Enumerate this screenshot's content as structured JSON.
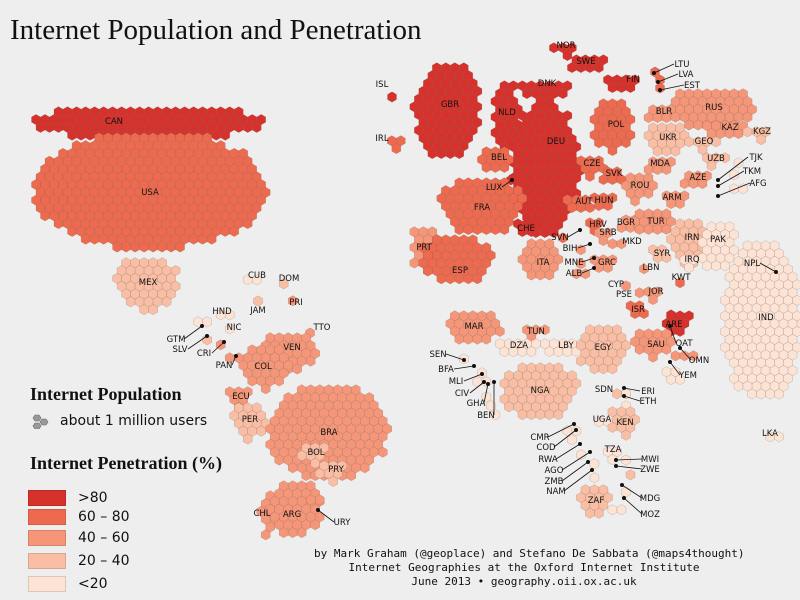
{
  "title": "Internet Population and Penetration",
  "legend": {
    "population_heading": "Internet Population",
    "population_unit": "about 1 million users",
    "penetration_heading": "Internet Penetration (%)",
    "bins": [
      {
        "label": ">80",
        "color": "#d7312b"
      },
      {
        "label": "60 – 80",
        "color": "#ee6a4f"
      },
      {
        "label": "40 – 60",
        "color": "#f59678"
      },
      {
        "label": "20 – 40",
        "color": "#f9bea3"
      },
      {
        "label": "<20",
        "color": "#fde3d4"
      }
    ]
  },
  "credit": {
    "line1": "by Mark Graham (@geoplace) and Stefano De Sabbata (@maps4thought)",
    "line2": "Internet Geographies at the Oxford Internet Institute",
    "line3": "June 2013 • geography.oii.ox.ac.uk"
  },
  "countries": [
    {
      "code": "CAN",
      "bin": 0
    },
    {
      "code": "USA",
      "bin": 1
    },
    {
      "code": "MEX",
      "bin": 3
    },
    {
      "code": "CUB",
      "bin": 4
    },
    {
      "code": "DOM",
      "bin": 3
    },
    {
      "code": "PRI",
      "bin": 2
    },
    {
      "code": "JAM",
      "bin": 3
    },
    {
      "code": "HND",
      "bin": 4
    },
    {
      "code": "GTM",
      "bin": 4
    },
    {
      "code": "SLV",
      "bin": 3
    },
    {
      "code": "NIC",
      "bin": 4
    },
    {
      "code": "CRI",
      "bin": 2
    },
    {
      "code": "PAN",
      "bin": 2
    },
    {
      "code": "TTO",
      "bin": 2
    },
    {
      "code": "VEN",
      "bin": 2
    },
    {
      "code": "COL",
      "bin": 2
    },
    {
      "code": "ECU",
      "bin": 2
    },
    {
      "code": "PER",
      "bin": 3
    },
    {
      "code": "BRA",
      "bin": 2
    },
    {
      "code": "BOL",
      "bin": 3
    },
    {
      "code": "PRY",
      "bin": 3
    },
    {
      "code": "CHL",
      "bin": 2
    },
    {
      "code": "ARG",
      "bin": 2
    },
    {
      "code": "URY",
      "bin": 2
    },
    {
      "code": "ISL",
      "bin": 0
    },
    {
      "code": "IRL",
      "bin": 1
    },
    {
      "code": "GBR",
      "bin": 0
    },
    {
      "code": "NOR",
      "bin": 0
    },
    {
      "code": "SWE",
      "bin": 0
    },
    {
      "code": "FIN",
      "bin": 0
    },
    {
      "code": "LTU",
      "bin": 1
    },
    {
      "code": "LVA",
      "bin": 1
    },
    {
      "code": "EST",
      "bin": 1
    },
    {
      "code": "DNK",
      "bin": 0
    },
    {
      "code": "NLD",
      "bin": 0
    },
    {
      "code": "DEU",
      "bin": 0
    },
    {
      "code": "POL",
      "bin": 1
    },
    {
      "code": "BEL",
      "bin": 1
    },
    {
      "code": "LUX",
      "bin": 0
    },
    {
      "code": "FRA",
      "bin": 1
    },
    {
      "code": "CHE",
      "bin": 0
    },
    {
      "code": "AUT",
      "bin": 1
    },
    {
      "code": "CZE",
      "bin": 1
    },
    {
      "code": "SVK",
      "bin": 1
    },
    {
      "code": "HUN",
      "bin": 1
    },
    {
      "code": "SVN",
      "bin": 1
    },
    {
      "code": "HRV",
      "bin": 1
    },
    {
      "code": "BIH",
      "bin": 2
    },
    {
      "code": "SRB",
      "bin": 2
    },
    {
      "code": "MNE",
      "bin": 2
    },
    {
      "code": "ALB",
      "bin": 2
    },
    {
      "code": "MKD",
      "bin": 2
    },
    {
      "code": "GRC",
      "bin": 2
    },
    {
      "code": "BGR",
      "bin": 2
    },
    {
      "code": "ROU",
      "bin": 2
    },
    {
      "code": "MDA",
      "bin": 2
    },
    {
      "code": "UKR",
      "bin": 3
    },
    {
      "code": "BLR",
      "bin": 2
    },
    {
      "code": "RUS",
      "bin": 2
    },
    {
      "code": "KAZ",
      "bin": 2
    },
    {
      "code": "KGZ",
      "bin": 3
    },
    {
      "code": "GEO",
      "bin": 3
    },
    {
      "code": "AZE",
      "bin": 2
    },
    {
      "code": "ARM",
      "bin": 2
    },
    {
      "code": "UZB",
      "bin": 3
    },
    {
      "code": "TJK",
      "bin": 4
    },
    {
      "code": "TKM",
      "bin": 4
    },
    {
      "code": "AFG",
      "bin": 4
    },
    {
      "code": "PRT",
      "bin": 2
    },
    {
      "code": "ESP",
      "bin": 1
    },
    {
      "code": "ITA",
      "bin": 2
    },
    {
      "code": "TUR",
      "bin": 2
    },
    {
      "code": "CYP",
      "bin": 2
    },
    {
      "code": "SYR",
      "bin": 3
    },
    {
      "code": "LBN",
      "bin": 2
    },
    {
      "code": "IRN",
      "bin": 3
    },
    {
      "code": "IRQ",
      "bin": 4
    },
    {
      "code": "PSE",
      "bin": 2
    },
    {
      "code": "JOR",
      "bin": 2
    },
    {
      "code": "KWT",
      "bin": 1
    },
    {
      "code": "ISR",
      "bin": 1
    },
    {
      "code": "QAT",
      "bin": 0
    },
    {
      "code": "ARE",
      "bin": 0
    },
    {
      "code": "SAU",
      "bin": 2
    },
    {
      "code": "OMN",
      "bin": 2
    },
    {
      "code": "YEM",
      "bin": 4
    },
    {
      "code": "PAK",
      "bin": 4
    },
    {
      "code": "NPL",
      "bin": 4
    },
    {
      "code": "IND",
      "bin": 4
    },
    {
      "code": "LKA",
      "bin": 4
    },
    {
      "code": "MAR",
      "bin": 2
    },
    {
      "code": "TUN",
      "bin": 2
    },
    {
      "code": "DZA",
      "bin": 4
    },
    {
      "code": "LBY",
      "bin": 4
    },
    {
      "code": "EGY",
      "bin": 3
    },
    {
      "code": "SEN",
      "bin": 4
    },
    {
      "code": "BFA",
      "bin": 4
    },
    {
      "code": "MLI",
      "bin": 4
    },
    {
      "code": "CIV",
      "bin": 4
    },
    {
      "code": "GHA",
      "bin": 4
    },
    {
      "code": "BEN",
      "bin": 4
    },
    {
      "code": "NGA",
      "bin": 3
    },
    {
      "code": "SDN",
      "bin": 3
    },
    {
      "code": "ERI",
      "bin": 4
    },
    {
      "code": "ETH",
      "bin": 4
    },
    {
      "code": "CMR",
      "bin": 4
    },
    {
      "code": "COD",
      "bin": 4
    },
    {
      "code": "UGA",
      "bin": 4
    },
    {
      "code": "KEN",
      "bin": 3
    },
    {
      "code": "RWA",
      "bin": 4
    },
    {
      "code": "AGO",
      "bin": 4
    },
    {
      "code": "TZA",
      "bin": 4
    },
    {
      "code": "MWI",
      "bin": 4
    },
    {
      "code": "ZWE",
      "bin": 3
    },
    {
      "code": "ZMB",
      "bin": 4
    },
    {
      "code": "NAM",
      "bin": 4
    },
    {
      "code": "ZAF",
      "bin": 3
    },
    {
      "code": "MDG",
      "bin": 4
    },
    {
      "code": "MOZ",
      "bin": 4
    }
  ]
}
